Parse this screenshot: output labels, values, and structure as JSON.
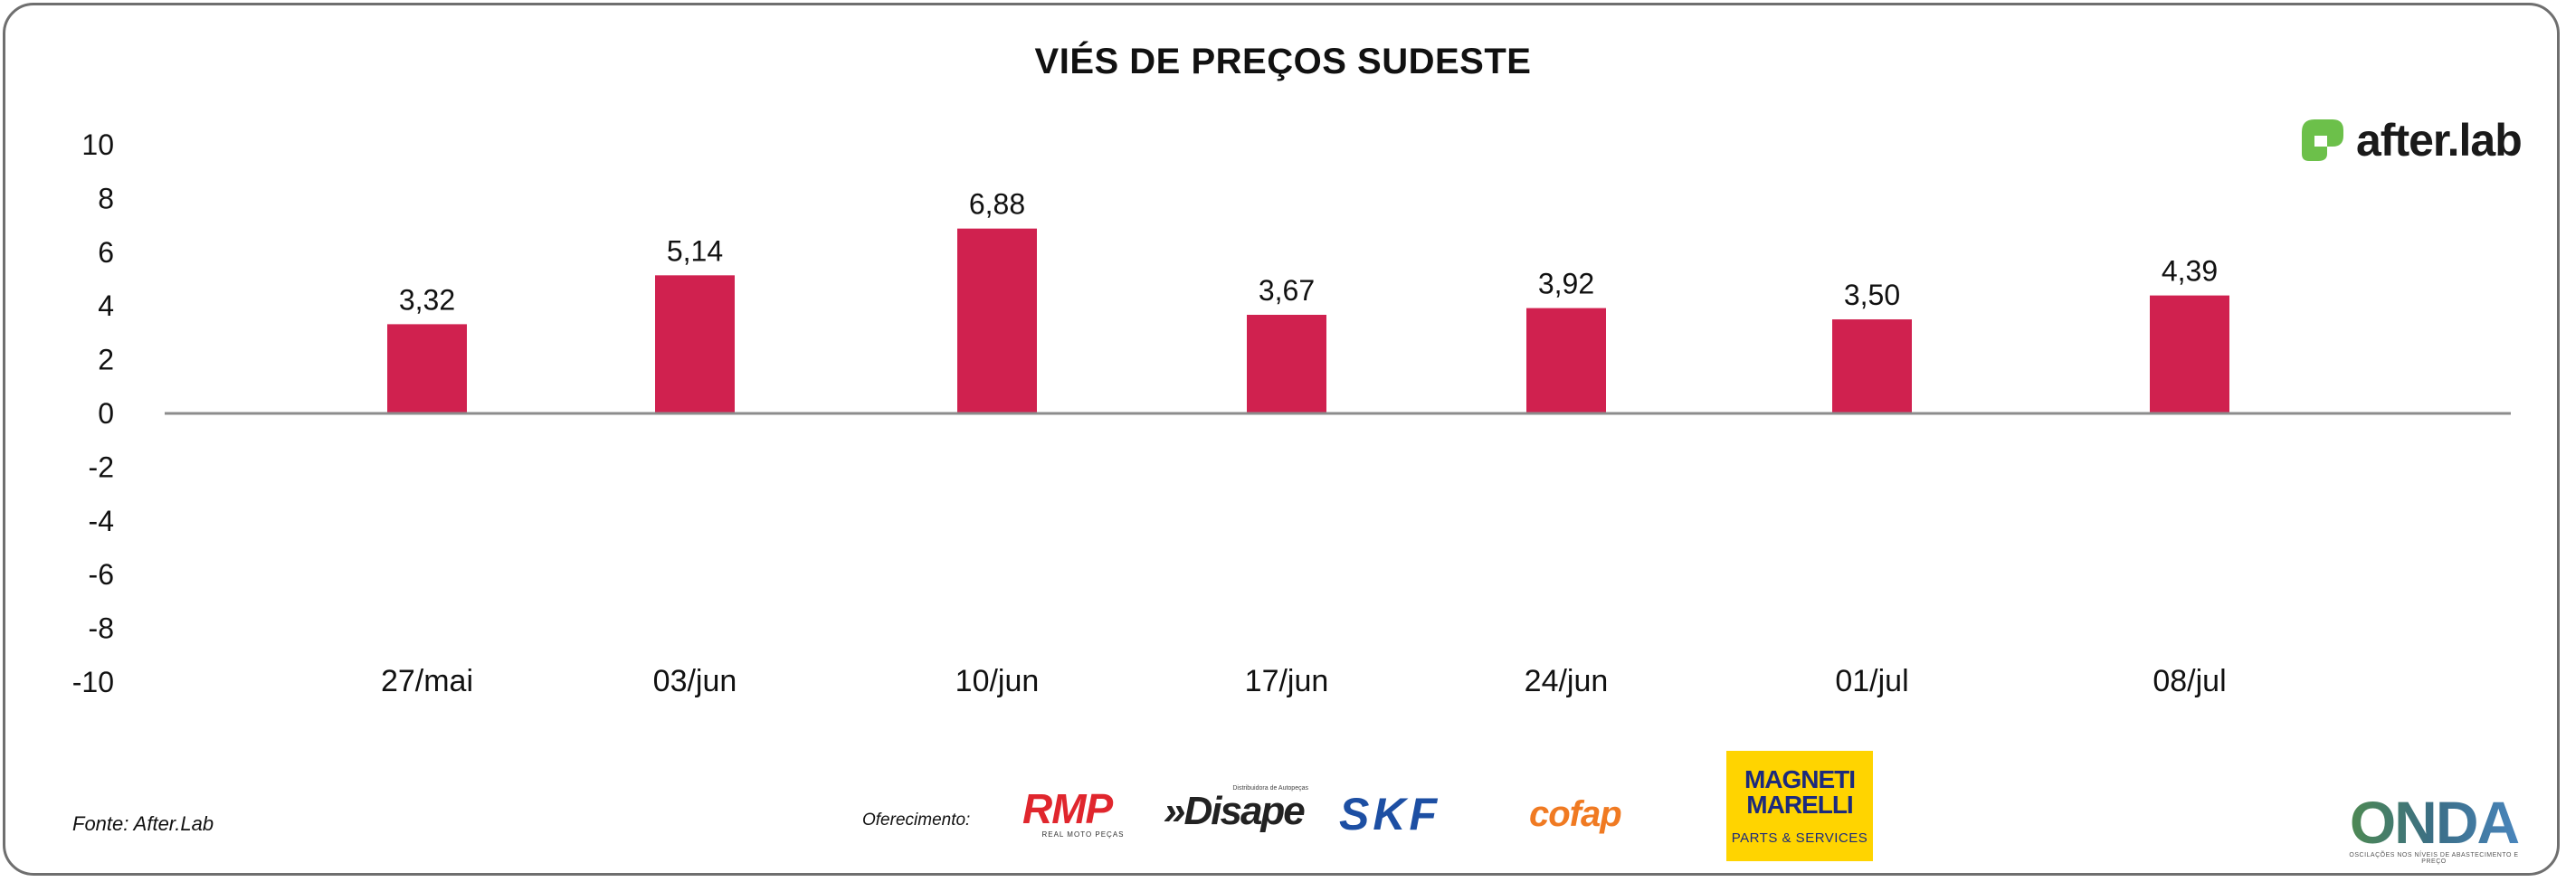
{
  "chart_data": {
    "type": "bar",
    "title": "VIÉS DE PREÇOS SUDESTE",
    "categories": [
      "27/mai",
      "03/jun",
      "10/jun",
      "17/jun",
      "24/jun",
      "01/jul",
      "08/jul"
    ],
    "values": [
      3.32,
      5.14,
      6.88,
      3.67,
      3.92,
      3.5,
      4.39
    ],
    "value_labels": [
      "3,32",
      "5,14",
      "6,88",
      "3,67",
      "3,92",
      "3,50",
      "4,39"
    ],
    "yticks": [
      10,
      8,
      6,
      4,
      2,
      0,
      -2,
      -4,
      -6,
      -8,
      -10
    ],
    "ylim": [
      -10,
      10
    ],
    "xlabel": "",
    "ylabel": "",
    "grid": false,
    "legend": "none",
    "bar_color": "#d0214f",
    "axis_color": "#8c8c8c"
  },
  "source": "Fonte: After.Lab",
  "sponsor_label": "Oferecimento:",
  "logos": {
    "afterlab": "after.lab",
    "afterlab_color": "#6cc04a",
    "rmp": "RMP",
    "rmp_sub": "REAL MOTO PEÇAS",
    "disape_tag": "Distribuidora de Autopeças",
    "disape": "»Disape",
    "skf": "SKF",
    "cofap": "cofap",
    "magneti_line1": "MAGNETI",
    "magneti_line2": "MARELLI",
    "magneti_line3": "PARTS & SERVICES",
    "onda": "ONDA",
    "onda_sub": "OSCILAÇÕES NOS NÍVEIS DE ABASTECIMENTO E PREÇO"
  }
}
